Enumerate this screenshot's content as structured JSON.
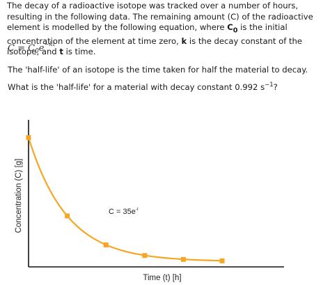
{
  "question": {
    "intro_1": "The decay of a radioactive isotope was tracked over a number of hours, resulting in the following data. The remaining amount (C) of the radioactive element is modelled by the following equation, where ",
    "c0_symbol": "C",
    "c0_subscript": "0",
    "intro_2": " is the initial concentration of the element at time zero, ",
    "k_symbol": "k",
    "intro_3": " is the decay constant of the isotope, and ",
    "t_symbol": "t",
    "intro_4": " is time."
  },
  "formula": {
    "lhs": "C = C",
    "subscript": "0",
    "base": "e",
    "exponent": "−kt"
  },
  "half_life_definition": "The 'half-life' of an isotope is the time taken for half the material to decay.",
  "ask": {
    "prefix": "What is the 'half-life' for a material with decay constant 0.992 s",
    "exponent": "−1",
    "suffix": "?"
  },
  "colors": {
    "curve": "#f5a623",
    "marker": "#f5a623",
    "axis": "#111111"
  },
  "chart_data": {
    "type": "line",
    "title": "",
    "xlabel": "Time (t) [h]",
    "ylabel": "Concentration (C) [g]",
    "annotation": {
      "text": "C = 35e",
      "superscript": "-t"
    },
    "initial_value": 35,
    "decay_rate": 1,
    "x": [
      0,
      1,
      2,
      3,
      4,
      5
    ],
    "y": [
      35,
      12.9,
      4.7,
      1.7,
      0.6,
      0.2
    ],
    "xlim": [
      0,
      6.6
    ],
    "ylim": [
      -1.5,
      40
    ],
    "grid": false,
    "ticks": false
  }
}
